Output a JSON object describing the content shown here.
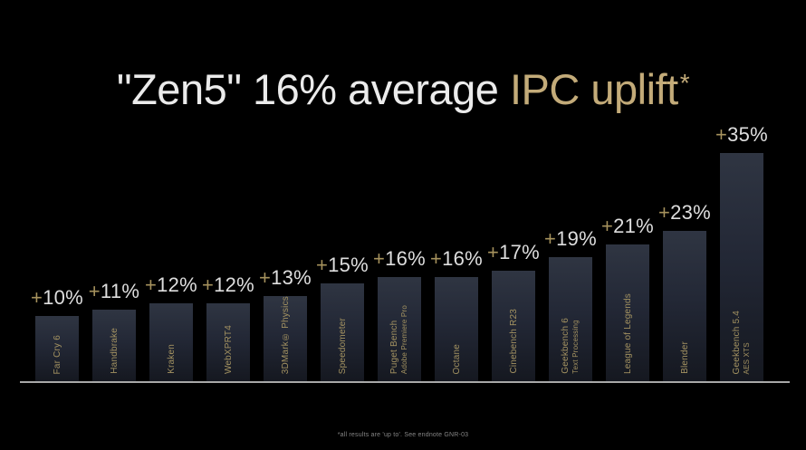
{
  "title": {
    "white_text": "\"Zen5\" 16% average ",
    "gold_text": "IPC uplift",
    "asterisk": "*"
  },
  "footnote": {
    "text": "*all results are 'up to'. See endnote GNR-03"
  },
  "colors": {
    "background": "#000000",
    "title_white": "#ebebeb",
    "gold_accent": "#c3ab79",
    "gold_plus": "#a6925d",
    "label_gold": "#a39261",
    "value_white": "#dedede",
    "bar_top": "#2f3542",
    "bar_bottom": "#151820",
    "baseline": "#a8a8a8"
  },
  "chart_data": {
    "type": "bar",
    "title": "\"Zen5\" 16% average IPC uplift*",
    "value_prefix": "+",
    "unit": "%",
    "ylim": [
      0,
      35
    ],
    "grid": false,
    "legend": false,
    "orientation": "vertical",
    "bars": [
      {
        "label": "Far Cry 6",
        "sublabel": "",
        "value": 10
      },
      {
        "label": "Handbrake",
        "sublabel": "",
        "value": 11
      },
      {
        "label": "Kraken",
        "sublabel": "",
        "value": 12
      },
      {
        "label": "WebXPRT4",
        "sublabel": "",
        "value": 12
      },
      {
        "label": "3DMark® Physics",
        "sublabel": "",
        "value": 13
      },
      {
        "label": "Speedometer",
        "sublabel": "",
        "value": 15
      },
      {
        "label": "Puget Bench",
        "sublabel": "Adobe Premiere Pro",
        "value": 16
      },
      {
        "label": "Octane",
        "sublabel": "",
        "value": 16
      },
      {
        "label": "Cinebench R23",
        "sublabel": "",
        "value": 17
      },
      {
        "label": "Geekbench 6",
        "sublabel": "Text Processing",
        "value": 19
      },
      {
        "label": "League of Legends",
        "sublabel": "",
        "value": 21
      },
      {
        "label": "Blender",
        "sublabel": "",
        "value": 23
      },
      {
        "label": "Geekbench 5.4",
        "sublabel": "AES XTS",
        "value": 35
      }
    ]
  }
}
